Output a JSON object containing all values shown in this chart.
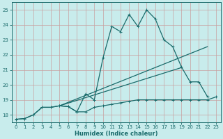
{
  "xlabel": "Humidex (Indice chaleur)",
  "bg_color": "#c8ecec",
  "grid_color": "#d4b8b8",
  "line_color": "#1a6b6b",
  "xlim": [
    -0.5,
    23.5
  ],
  "ylim": [
    17.5,
    25.5
  ],
  "xticks": [
    0,
    1,
    2,
    3,
    4,
    5,
    6,
    7,
    8,
    9,
    10,
    11,
    12,
    13,
    14,
    15,
    16,
    17,
    18,
    19,
    20,
    21,
    22,
    23
  ],
  "yticks": [
    18,
    19,
    20,
    21,
    22,
    23,
    24,
    25
  ],
  "curve1_x": [
    0,
    1,
    2,
    3,
    4,
    5,
    6,
    7,
    8,
    9,
    10,
    11,
    12,
    13,
    14,
    15,
    16,
    17,
    18,
    19,
    20,
    21,
    22
  ],
  "curve1_y": [
    17.7,
    17.75,
    18.0,
    18.5,
    18.5,
    18.6,
    18.55,
    18.2,
    19.4,
    19.0,
    21.8,
    23.9,
    23.55,
    24.7,
    23.9,
    25.0,
    24.4,
    23.0,
    22.55,
    21.2,
    20.2,
    20.2,
    19.2
  ],
  "curve2_x": [
    0,
    1,
    2,
    3,
    4,
    5,
    6,
    7,
    8,
    9,
    10,
    11,
    12,
    13,
    14,
    15,
    16,
    17,
    18,
    19,
    20,
    21,
    22,
    23
  ],
  "curve2_y": [
    17.7,
    17.75,
    18.0,
    18.5,
    18.5,
    18.6,
    18.55,
    18.2,
    18.2,
    18.5,
    18.6,
    18.7,
    18.8,
    18.9,
    19.0,
    19.0,
    19.0,
    19.0,
    19.0,
    19.0,
    19.0,
    19.0,
    19.0,
    19.2
  ],
  "line3_x": [
    5,
    19
  ],
  "line3_y": [
    18.6,
    21.15
  ],
  "line4_x": [
    5,
    22
  ],
  "line4_y": [
    18.6,
    22.55
  ]
}
